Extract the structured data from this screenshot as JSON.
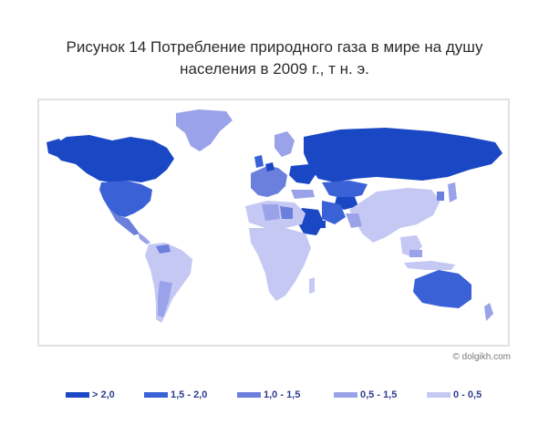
{
  "title": {
    "line1": "Рисунок 14 Потребление природного газа в мире на душу",
    "line2": "населения в 2009 г., т н. э."
  },
  "copyright": "© dolgikh.com",
  "colors": {
    "gt_2_0": "#1a47c4",
    "r_1_5_2_0": "#3a62d6",
    "r_1_0_1_5": "#6b7fdc",
    "r_0_5_1_5": "#9aa3ea",
    "r_0_0_5": "#c6c8f4",
    "frame": "#e2e2e2"
  },
  "legend": [
    {
      "label": "> 2,0",
      "color": "#1a47c4"
    },
    {
      "label": "1,5 - 2,0",
      "color": "#3a62d6"
    },
    {
      "label": "1,0 - 1,5",
      "color": "#6b7fdc"
    },
    {
      "label": "0,5 - 1,5",
      "color": "#9aa3ea"
    },
    {
      "label": "0 - 0,5",
      "color": "#c6c8f4"
    }
  ]
}
